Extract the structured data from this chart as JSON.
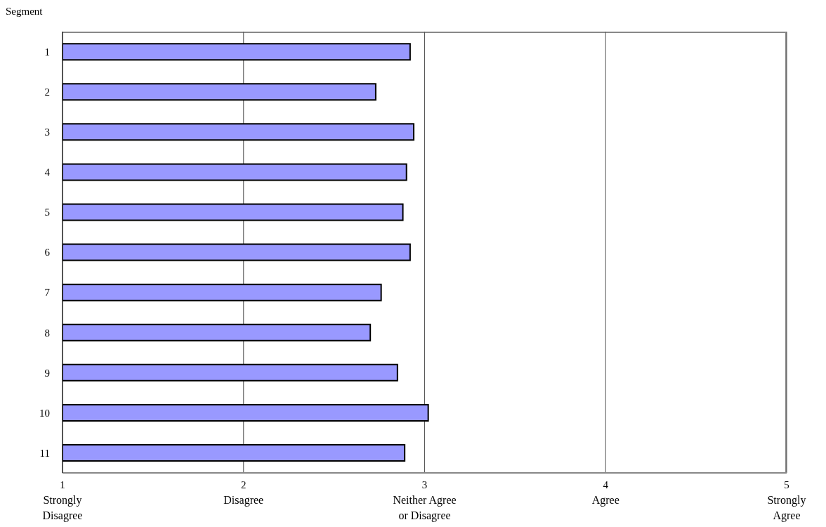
{
  "chart_data": {
    "type": "bar",
    "orientation": "horizontal",
    "ylabel": "Segment",
    "categories": [
      "1",
      "2",
      "3",
      "4",
      "5",
      "6",
      "7",
      "8",
      "9",
      "10",
      "11"
    ],
    "values": [
      2.92,
      2.73,
      2.94,
      2.9,
      2.88,
      2.92,
      2.76,
      2.7,
      2.85,
      3.02,
      2.89
    ],
    "color": "#9999ff",
    "xlim": [
      1,
      5
    ],
    "xticks": [
      {
        "value": 1,
        "label": "1\nStrongly\nDisagree"
      },
      {
        "value": 2,
        "label": "2\nDisagree"
      },
      {
        "value": 3,
        "label": "3\nNeither Agree\nor Disagree"
      },
      {
        "value": 4,
        "label": "4\nAgree"
      },
      {
        "value": 5,
        "label": "5\nStrongly\nAgree"
      }
    ],
    "grid": "x"
  }
}
